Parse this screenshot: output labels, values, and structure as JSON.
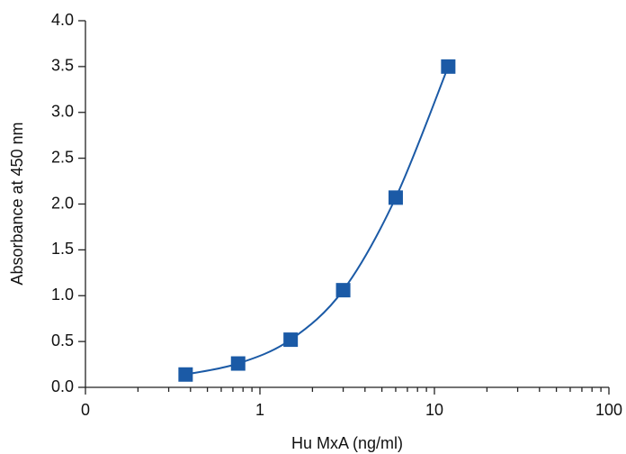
{
  "chart_data": {
    "type": "line",
    "xlabel": "Hu MxA (ng/ml)",
    "ylabel": "Absorbance at 450 nm",
    "x": [
      0.375,
      0.75,
      1.5,
      3,
      6,
      12
    ],
    "series": [
      {
        "color": "#1b5aa6",
        "values": [
          0.14,
          0.26,
          0.52,
          1.06,
          2.07,
          3.5
        ]
      }
    ],
    "xscale": "log",
    "xlim": [
      0.1,
      100
    ],
    "xticks": [
      {
        "value": 0.1,
        "label": "0"
      },
      1,
      10,
      100
    ],
    "ylim": [
      0,
      4
    ],
    "yticks": [
      {
        "value": 0,
        "label": "0.0"
      },
      0.5,
      {
        "value": 1,
        "label": "1.0"
      },
      1.5,
      {
        "value": 2,
        "label": "2.0"
      },
      2.5,
      {
        "value": 3,
        "label": "3.0"
      },
      3.5,
      {
        "value": 4,
        "label": "4.0"
      }
    ]
  }
}
